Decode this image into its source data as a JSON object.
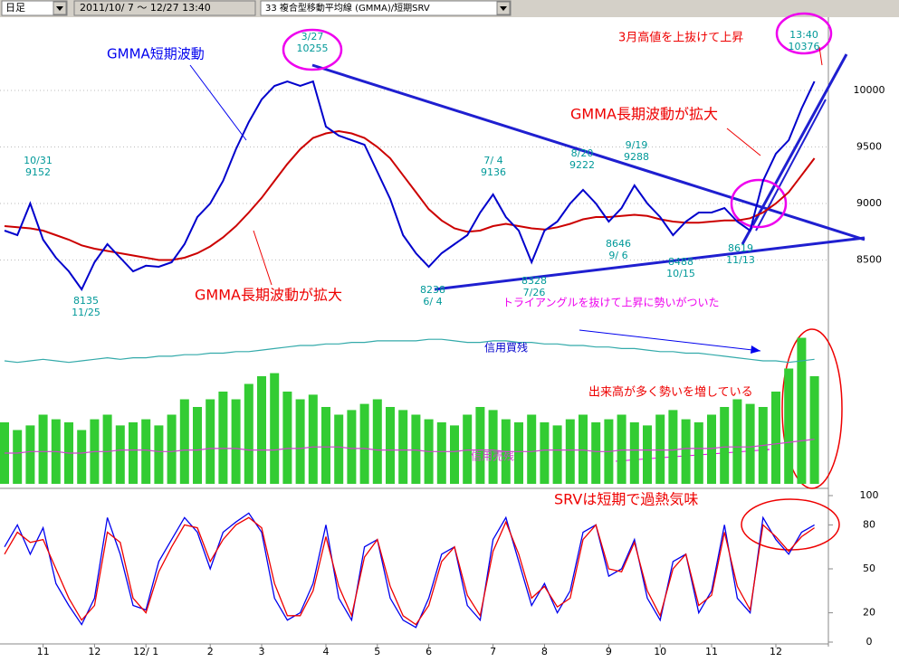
{
  "toolbar": {
    "period": "日足",
    "range": "2011/10/ 7 ～ 12/27 13:40",
    "indicator": "33 複合型移動平均線 (GMMA)/短期SRV"
  },
  "chart_data": [
    {
      "type": "line",
      "ylim": [
        8080,
        10640
      ],
      "yticks": [
        8500,
        9000,
        9500,
        10000
      ],
      "grid": true,
      "series": [
        {
          "color": "#cc0000",
          "values": [
            8800,
            8790,
            8780,
            8760,
            8720,
            8680,
            8630,
            8600,
            8580,
            8560,
            8540,
            8520,
            8500,
            8500,
            8520,
            8560,
            8620,
            8700,
            8800,
            8920,
            9050,
            9200,
            9350,
            9480,
            9580,
            9620,
            9640,
            9620,
            9580,
            9500,
            9400,
            9250,
            9100,
            8950,
            8850,
            8780,
            8750,
            8760,
            8800,
            8820,
            8800,
            8780,
            8770,
            8790,
            8820,
            8860,
            8880,
            8880,
            8890,
            8900,
            8890,
            8860,
            8840,
            8830,
            8830,
            8840,
            8850,
            8850,
            8870,
            8920,
            9000,
            9100,
            9250,
            9400
          ]
        },
        {
          "color": "#0000cc",
          "values": [
            8760,
            8720,
            9000,
            8680,
            8520,
            8400,
            8240,
            8480,
            8640,
            8520,
            8400,
            8450,
            8440,
            8480,
            8640,
            8880,
            9000,
            9200,
            9480,
            9720,
            9920,
            10040,
            10080,
            10040,
            10080,
            9680,
            9600,
            9560,
            9520,
            9280,
            9040,
            8720,
            8560,
            8440,
            8560,
            8640,
            8720,
            8920,
            9080,
            8880,
            8760,
            8480,
            8760,
            8840,
            9000,
            9120,
            9000,
            8840,
            8960,
            9160,
            9000,
            8880,
            8720,
            8840,
            8920,
            8920,
            8960,
            8840,
            8760,
            9200,
            9440,
            9560,
            9840,
            10080
          ]
        }
      ],
      "point_labels": [
        {
          "date": "10/31",
          "price": 9152
        },
        {
          "date": "11/25",
          "price": 8135
        },
        {
          "date": "3/27",
          "price": 10255
        },
        {
          "date": "6/ 4",
          "price": 8238
        },
        {
          "date": "7/ 4",
          "price": 9136
        },
        {
          "date": "7/26",
          "price": 8328
        },
        {
          "date": "8/20",
          "price": 9222
        },
        {
          "date": "9/19",
          "price": 9288
        },
        {
          "date": "9/ 6",
          "price": 8646
        },
        {
          "date": "10/15",
          "price": 8488
        },
        {
          "date": "11/13",
          "price": 8619
        },
        {
          "date": "13:40",
          "price": 10376
        }
      ],
      "annotations": [
        {
          "text": "GMMA短期波動",
          "color": "#0000ee"
        },
        {
          "text": "3月高値を上抜けて上昇",
          "color": "#ee0000"
        },
        {
          "text": "GMMA長期波動が拡大",
          "color": "#ee0000"
        },
        {
          "text": "GMMA長期波動が拡大",
          "color": "#ee0000"
        },
        {
          "text": "トライアングルを抜けて上昇に勢いがついた",
          "color": "#ee00ee"
        }
      ]
    },
    {
      "type": "bar",
      "color": "#33cc33",
      "ylim": [
        0,
        100
      ],
      "values": [
        40,
        35,
        38,
        45,
        42,
        40,
        35,
        42,
        45,
        38,
        40,
        42,
        38,
        45,
        55,
        50,
        55,
        60,
        55,
        65,
        70,
        72,
        60,
        55,
        58,
        50,
        45,
        48,
        52,
        55,
        50,
        48,
        45,
        42,
        40,
        38,
        45,
        50,
        48,
        42,
        40,
        45,
        40,
        38,
        42,
        45,
        40,
        42,
        45,
        40,
        38,
        45,
        48,
        42,
        40,
        45,
        50,
        55,
        52,
        50,
        60,
        75,
        95,
        70
      ],
      "series": [
        {
          "name": "信用買残",
          "color": "#33aaaa",
          "values": [
            80,
            79,
            80,
            81,
            80,
            79,
            80,
            81,
            82,
            81,
            82,
            82,
            83,
            83,
            84,
            84,
            85,
            85,
            86,
            86,
            87,
            88,
            89,
            90,
            90,
            91,
            91,
            92,
            92,
            93,
            93,
            93,
            93,
            94,
            94,
            93,
            92,
            92,
            93,
            93,
            92,
            92,
            91,
            91,
            90,
            90,
            89,
            89,
            88,
            88,
            87,
            86,
            86,
            85,
            85,
            84,
            83,
            82,
            81,
            80,
            80,
            79,
            80,
            81
          ]
        },
        {
          "name": "信用売残",
          "color": "#cc44cc",
          "values": [
            20,
            20,
            21,
            21,
            21,
            20,
            20,
            21,
            21,
            22,
            22,
            22,
            21,
            21,
            22,
            22,
            23,
            23,
            23,
            22,
            22,
            22,
            23,
            23,
            24,
            24,
            24,
            23,
            23,
            22,
            22,
            22,
            22,
            21,
            21,
            21,
            22,
            22,
            22,
            21,
            21,
            21,
            22,
            22,
            22,
            22,
            21,
            21,
            22,
            22,
            22,
            22,
            22,
            23,
            23,
            23,
            24,
            24,
            24,
            25,
            26,
            27,
            28,
            29
          ]
        }
      ],
      "annotations": [
        {
          "text": "出来高が多く勢いを増している",
          "color": "#ee0000"
        }
      ]
    },
    {
      "type": "line",
      "ylim": [
        0,
        100
      ],
      "yticks": [
        0,
        20,
        50,
        80,
        100
      ],
      "categories": [
        null,
        null,
        null,
        "11",
        null,
        null,
        null,
        "12",
        null,
        null,
        null,
        "12/ 1",
        null,
        null,
        null,
        null,
        "2",
        null,
        null,
        null,
        "3",
        null,
        null,
        null,
        null,
        "4",
        null,
        null,
        null,
        "5",
        null,
        null,
        null,
        "6",
        null,
        null,
        null,
        null,
        "7",
        null,
        null,
        null,
        "8",
        null,
        null,
        null,
        null,
        "9",
        null,
        null,
        null,
        "10",
        null,
        null,
        null,
        "11",
        null,
        null,
        null,
        null,
        "12",
        null,
        null,
        null
      ],
      "series": [
        {
          "color": "#0000ee",
          "values": [
            65,
            80,
            60,
            78,
            40,
            25,
            12,
            30,
            85,
            60,
            25,
            22,
            55,
            70,
            85,
            75,
            50,
            75,
            82,
            88,
            75,
            30,
            15,
            20,
            40,
            80,
            30,
            15,
            65,
            70,
            30,
            15,
            10,
            30,
            60,
            65,
            25,
            15,
            70,
            85,
            55,
            25,
            40,
            20,
            35,
            75,
            80,
            45,
            50,
            70,
            30,
            15,
            55,
            60,
            20,
            35,
            80,
            30,
            20,
            85,
            70,
            60,
            75,
            80
          ]
        },
        {
          "color": "#ee0000",
          "values": [
            60,
            75,
            68,
            70,
            50,
            30,
            15,
            25,
            75,
            68,
            30,
            20,
            48,
            65,
            80,
            78,
            55,
            70,
            80,
            85,
            78,
            40,
            18,
            18,
            35,
            72,
            38,
            18,
            58,
            70,
            38,
            18,
            12,
            25,
            55,
            65,
            32,
            18,
            62,
            82,
            60,
            30,
            38,
            24,
            30,
            70,
            80,
            50,
            48,
            68,
            35,
            18,
            50,
            60,
            25,
            32,
            75,
            38,
            22,
            80,
            72,
            62,
            72,
            78
          ]
        }
      ],
      "annotations": [
        {
          "text": "SRVは短期で過熱気味",
          "color": "#ee0000"
        }
      ]
    }
  ]
}
